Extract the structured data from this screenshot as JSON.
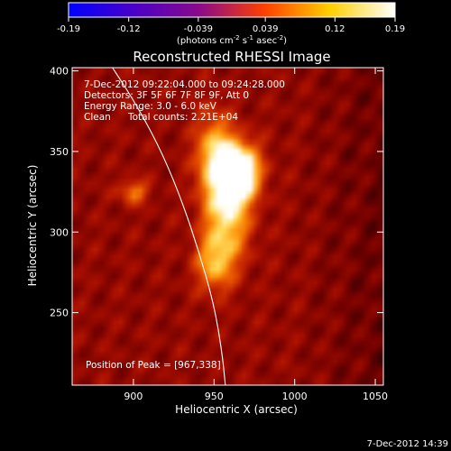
{
  "chart_data": {
    "type": "heatmap",
    "title": "Reconstructed RHESSI Image",
    "xlabel": "Heliocentric X (arcsec)",
    "ylabel": "Heliocentric Y (arcsec)",
    "xlim": [
      862,
      1055
    ],
    "ylim": [
      205,
      402
    ],
    "xticks": [
      900,
      950,
      1000,
      1050
    ],
    "xtick_labels": [
      "900",
      "950",
      "1000",
      "1050"
    ],
    "yticks": [
      250,
      300,
      350,
      400
    ],
    "ytick_labels": [
      "250",
      "300",
      "350",
      "400"
    ],
    "colorbar": {
      "position": "top",
      "ticks": [
        -0.19,
        -0.12,
        -0.039,
        0.039,
        0.12,
        0.19
      ],
      "tick_labels": [
        "-0.19",
        "-0.12",
        "-0.039",
        "0.039",
        "0.12",
        "0.19"
      ],
      "range": [
        -0.19,
        0.19
      ],
      "units_main": "(photons cm",
      "units_exp1": "-2",
      "units_mid": " s",
      "units_exp2": "-1",
      "units_end": " asec",
      "units_exp3": "-2",
      "units_close": ")",
      "colormap": [
        "#0000ff",
        "#4a00c8",
        "#8a0a8a",
        "#ff4000",
        "#ffd000",
        "#ffffff"
      ]
    },
    "annotations": {
      "time_range": "7-Dec-2012 09:22:04.000 to 09:24:28.000",
      "detectors": "Detectors: 3F 5F 6F 7F 8F 9F, Att 0",
      "energy_range": "Energy Range: 3.0 - 6.0 keV",
      "clean_label": "Clean",
      "total_counts": "Total counts: 2.21E+04",
      "peak_position": "Position of Peak = [967,338]"
    },
    "sources": [
      {
        "x": 965,
        "y": 338,
        "sigma_x": 9,
        "sigma_y": 12,
        "amp": 1.0
      },
      {
        "x": 950,
        "y": 348,
        "sigma_x": 8,
        "sigma_y": 18,
        "amp": 0.55
      },
      {
        "x": 958,
        "y": 310,
        "sigma_x": 10,
        "sigma_y": 20,
        "amp": 0.6
      },
      {
        "x": 950,
        "y": 280,
        "sigma_x": 8,
        "sigma_y": 12,
        "amp": 0.45
      },
      {
        "x": 900,
        "y": 325,
        "sigma_x": 6,
        "sigma_y": 5,
        "amp": 0.4
      }
    ],
    "limb_curve": [
      [
        887,
        402
      ],
      [
        900,
        382
      ],
      [
        915,
        355
      ],
      [
        928,
        325
      ],
      [
        940,
        290
      ],
      [
        950,
        255
      ],
      [
        955,
        225
      ],
      [
        957,
        205
      ]
    ],
    "footer_timestamp": "7-Dec-2012 14:39"
  }
}
